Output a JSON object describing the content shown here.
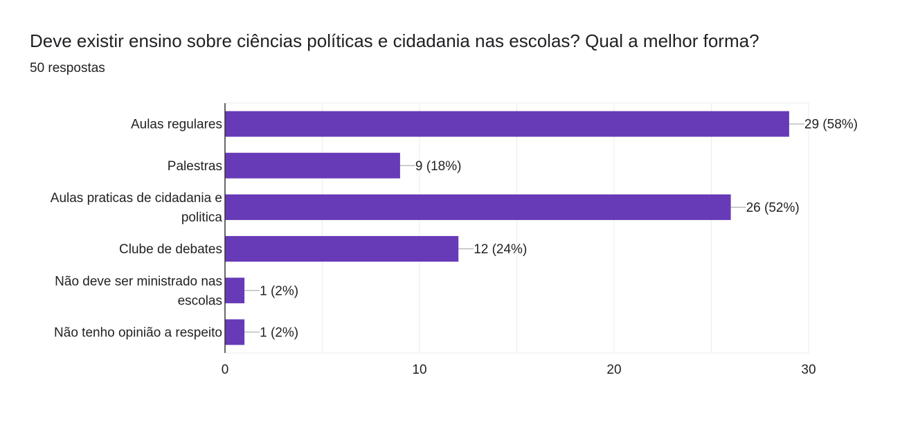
{
  "form_question": {
    "title": "Deve existir ensino sobre ciências políticas e cidadania nas escolas? Qual a melhor forma?",
    "responses": "50 respostas"
  },
  "colors": {
    "bar": "#673ab7",
    "grid": "#ebebeb",
    "axis": "#333333",
    "leader": "#9e9e9e"
  },
  "chart_data": {
    "type": "bar",
    "orientation": "horizontal",
    "categories": [
      [
        "Aulas regulares"
      ],
      [
        "Palestras"
      ],
      [
        "Aulas praticas de cidadania e",
        "politica"
      ],
      [
        "Clube de debates"
      ],
      [
        "Não deve ser ministrado nas",
        "escolas"
      ],
      [
        "Não tenho opinião a respeito"
      ]
    ],
    "values": [
      29,
      9,
      26,
      12,
      1,
      1
    ],
    "data_labels": [
      "29 (58%)",
      "9 (18%)",
      "26 (52%)",
      "12 (24%)",
      "1 (2%)",
      "1 (2%)"
    ],
    "xlim": [
      0,
      30
    ],
    "xticks": [
      0,
      10,
      20,
      30
    ],
    "tick_labels": [
      "0",
      "10",
      "20",
      "30"
    ],
    "grid": true,
    "legend": "none"
  }
}
